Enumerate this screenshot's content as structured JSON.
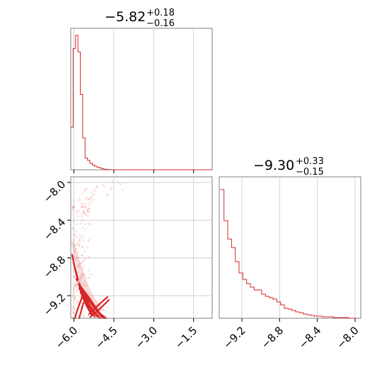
{
  "chart_data": {
    "type": "corner",
    "color": "#d62728",
    "grid": true,
    "panels": {
      "hist_top": {
        "type": "histogram",
        "title_main": "−5.82",
        "title_sup": "+0.18",
        "title_sub": "−0.16",
        "xlim": [
          -6.12,
          -0.8
        ],
        "edges": [
          -6.12,
          -6.03,
          -5.94,
          -5.85,
          -5.76,
          -5.67,
          -5.58,
          -5.49,
          -5.4,
          -5.31,
          -5.22,
          -5.13,
          -5.04,
          -4.95,
          -4.86,
          -4.77,
          -4.68
        ],
        "counts": [
          360,
          1030,
          1140,
          1000,
          640,
          270,
          100,
          80,
          55,
          40,
          30,
          20,
          15,
          8,
          4,
          2
        ],
        "ymax": 1200
      },
      "hist_right": {
        "type": "histogram",
        "title_main": "−9.30",
        "title_sup": "+0.33",
        "title_sub": "−0.15",
        "xlim": [
          -9.44,
          -7.94
        ],
        "xticks": [
          -9.2,
          -8.8,
          -8.4,
          -8.0
        ],
        "xtick_labels": [
          "−9.2",
          "−8.8",
          "−8.4",
          "−8.0"
        ],
        "edges": [
          -9.43,
          -9.39,
          -9.35,
          -9.31,
          -9.27,
          -9.23,
          -9.19,
          -9.15,
          -9.11,
          -9.07,
          -9.03,
          -8.99,
          -8.95,
          -8.91,
          -8.87,
          -8.83,
          -8.79,
          -8.75,
          -8.71,
          -8.67,
          -8.63,
          -8.59,
          -8.55,
          -8.51,
          -8.47,
          -8.43,
          -8.39,
          -8.35,
          -8.31,
          -8.27,
          -8.23,
          -8.19,
          -8.15,
          -8.11,
          -8.07,
          -8.03,
          -7.99
        ],
        "counts": [
          182,
          138,
          112,
          100,
          80,
          64,
          55,
          49,
          44,
          40,
          40,
          34,
          31,
          29,
          27,
          23,
          19,
          14,
          13,
          11,
          9,
          8,
          6,
          5,
          4,
          3,
          3,
          2,
          2,
          2,
          1,
          1,
          1,
          1,
          0,
          0
        ],
        "ymax": 200
      },
      "scatter": {
        "type": "scatter+contour",
        "xlim": [
          -6.12,
          -0.8
        ],
        "ylim": [
          -9.44,
          -7.94
        ],
        "xticks": [
          -6.0,
          -4.5,
          -3.0,
          -1.5
        ],
        "xtick_labels": [
          "−6.0",
          "−4.5",
          "−3.0",
          "−1.5"
        ],
        "yticks": [
          -8.0,
          -8.4,
          -8.8,
          -9.2
        ],
        "ytick_labels": [
          "−8.0",
          "−8.4",
          "−8.8",
          "−9.2"
        ]
      }
    }
  }
}
